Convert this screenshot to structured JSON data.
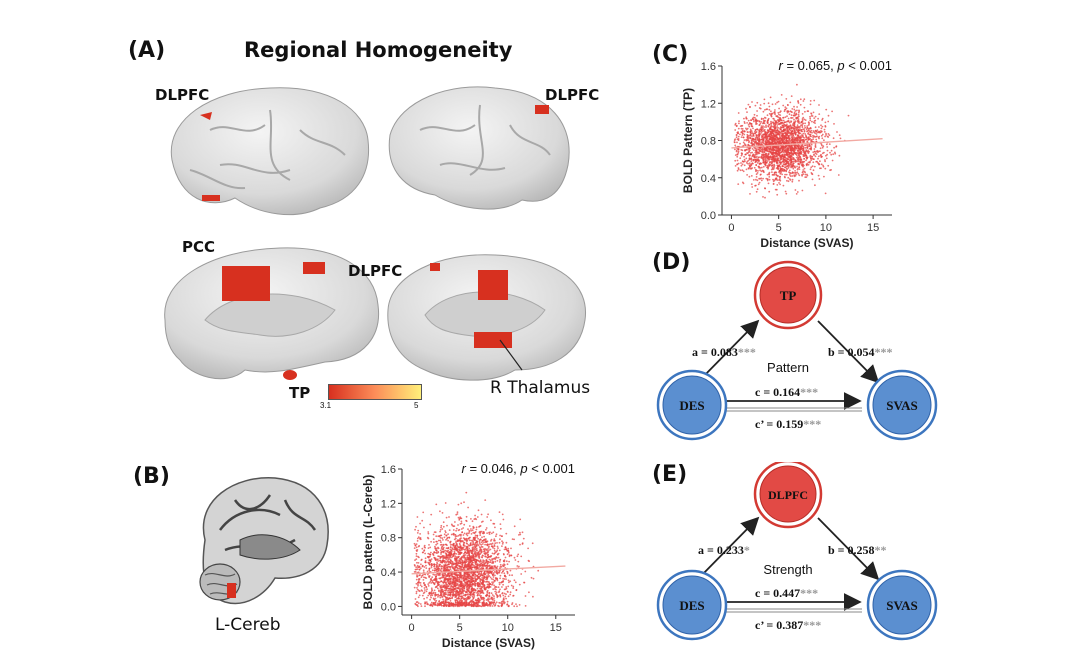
{
  "panels": {
    "A": {
      "label": "(A)",
      "title": "Regional Homogeneity",
      "regions": {
        "dlpfc_left_top": "DLPFC",
        "dlpfc_right_top": "DLPFC",
        "pcc": "PCC",
        "dlpfc_medial": "DLPFC",
        "tp": "TP",
        "r_thalamus": "R Thalamus"
      },
      "colorbar": {
        "min": "3.1",
        "max": "5",
        "colors": [
          "#d7301f",
          "#fc8d59",
          "#fff07a"
        ]
      }
    },
    "B": {
      "label": "(B)",
      "brain_label": "L-Cereb"
    },
    "C": {
      "label": "(C)"
    },
    "D": {
      "label": "(D)",
      "mediator": "TP",
      "x_node": "DES",
      "y_node": "SVAS",
      "center_label": "Pattern",
      "path_a": "a = 0.083",
      "path_a_sig": "***",
      "path_b": "b = 0.054",
      "path_b_sig": "***",
      "path_c": "c = 0.164",
      "path_c_sig": "***",
      "path_c_prime": "c’ = 0.159",
      "path_c_prime_sig": "***"
    },
    "E": {
      "label": "(E)",
      "mediator": "DLPFC",
      "x_node": "DES",
      "y_node": "SVAS",
      "center_label": "Strength",
      "path_a": "a = 0.233",
      "path_a_sig": "*",
      "path_b": "b = 0.258",
      "path_b_sig": "**",
      "path_c": "c = 0.447",
      "path_c_sig": "***",
      "path_c_prime": "c’ = 0.387",
      "path_c_prime_sig": "***"
    }
  },
  "colors": {
    "mediator_fill": "#e24a45",
    "node_fill": "#5b8fd0",
    "dot": "#e64545",
    "brain_active": "#d7301f"
  },
  "chart_data": [
    {
      "panel": "C",
      "type": "scatter",
      "title": "",
      "annotation": {
        "r_symbol": "r",
        "r_text": " = 0.065, ",
        "p_symbol": "p",
        "p_text": " < 0.001"
      },
      "xlabel": "Distance (SVAS)",
      "ylabel": "BOLD Pattern (TP)",
      "xlim": [
        -1,
        17
      ],
      "ylim": [
        0,
        1.6
      ],
      "xticks": [
        0,
        5,
        10,
        15
      ],
      "yticks": [
        0.0,
        0.4,
        0.8,
        1.2,
        1.6
      ],
      "ytick_labels": [
        "0.0",
        "0.4",
        "0.8",
        "1.2",
        "1.6"
      ],
      "cluster": {
        "x_center": 5.2,
        "x_sd": 2.2,
        "y_center": 0.75,
        "y_sd": 0.18,
        "n": 2600
      },
      "trend": {
        "x": [
          0,
          16
        ],
        "y": [
          0.72,
          0.82
        ]
      }
    },
    {
      "panel": "B",
      "type": "scatter",
      "title": "",
      "annotation": {
        "r_symbol": "r",
        "r_text": " = 0.046, ",
        "p_symbol": "p",
        "p_text": " < 0.001"
      },
      "xlabel": "Distance (SVAS)",
      "ylabel": "BOLD pattern (L-Cereb)",
      "xlim": [
        -1,
        17
      ],
      "ylim": [
        -0.1,
        1.6
      ],
      "xticks": [
        0,
        5,
        10,
        15
      ],
      "yticks": [
        0.0,
        0.4,
        0.8,
        1.2,
        1.6
      ],
      "ytick_labels": [
        "0.0",
        "0.4",
        "0.8",
        "1.2",
        "1.6"
      ],
      "cluster": {
        "x_center": 5.5,
        "x_sd": 2.4,
        "y_center": 0.38,
        "y_sd": 0.28,
        "n": 3000
      },
      "trend": {
        "x": [
          0,
          16
        ],
        "y": [
          0.38,
          0.47
        ]
      }
    }
  ]
}
